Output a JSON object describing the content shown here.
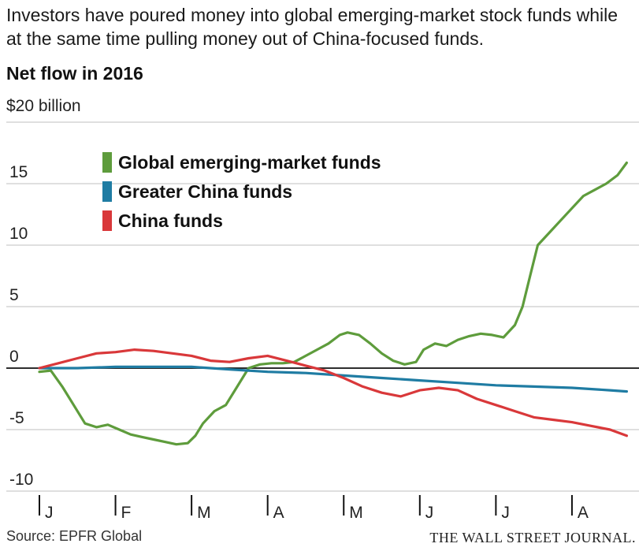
{
  "header": {
    "subtitle": "Investors have poured money into global emerging-market stock funds while at the same time pulling money out of China-focused funds.",
    "title": "Net flow in 2016",
    "unit_label": "$20 billion"
  },
  "footer": {
    "source": "Source: EPFR Global",
    "publisher": "THE WALL STREET JOURNAL."
  },
  "chart_data": {
    "type": "line",
    "title": "Net flow in 2016",
    "ylabel": "$20 billion",
    "ylim": [
      -10,
      20
    ],
    "yticks": [
      {
        "value": 20,
        "label": ""
      },
      {
        "value": 15,
        "label": "15"
      },
      {
        "value": 10,
        "label": "10"
      },
      {
        "value": 5,
        "label": "5"
      },
      {
        "value": 0,
        "label": "0"
      },
      {
        "value": -5,
        "label": "-5"
      },
      {
        "value": -10,
        "label": "-10"
      }
    ],
    "xlim": [
      0,
      7.85
    ],
    "xticks": [
      {
        "value": 0,
        "label": "J"
      },
      {
        "value": 1,
        "label": "F"
      },
      {
        "value": 2,
        "label": "M"
      },
      {
        "value": 3,
        "label": "A"
      },
      {
        "value": 4,
        "label": "M"
      },
      {
        "value": 5,
        "label": "J"
      },
      {
        "value": 6,
        "label": "J"
      },
      {
        "value": 7,
        "label": "A"
      }
    ],
    "grid": true,
    "legend_position": "top-left",
    "series": [
      {
        "name": "Global emerging-market funds",
        "color": "#5e9c3c",
        "x": [
          0,
          0.15,
          0.3,
          0.45,
          0.6,
          0.75,
          0.9,
          1.05,
          1.2,
          1.35,
          1.5,
          1.65,
          1.8,
          1.95,
          2.05,
          2.15,
          2.3,
          2.45,
          2.6,
          2.75,
          2.9,
          3.05,
          3.2,
          3.35,
          3.5,
          3.65,
          3.8,
          3.95,
          4.05,
          4.2,
          4.35,
          4.5,
          4.65,
          4.8,
          4.95,
          5.05,
          5.2,
          5.35,
          5.5,
          5.65,
          5.8,
          5.95,
          6.1,
          6.25,
          6.35,
          6.45,
          6.55,
          6.7,
          6.85,
          7.0,
          7.15,
          7.3,
          7.45,
          7.6,
          7.72
        ],
        "values": [
          -0.3,
          -0.2,
          -1.5,
          -3.0,
          -4.5,
          -4.8,
          -4.6,
          -5.0,
          -5.4,
          -5.6,
          -5.8,
          -6.0,
          -6.2,
          -6.1,
          -5.5,
          -4.5,
          -3.5,
          -3.0,
          -1.5,
          0.0,
          0.3,
          0.4,
          0.4,
          0.5,
          1.0,
          1.5,
          2.0,
          2.7,
          2.9,
          2.7,
          2.0,
          1.2,
          0.6,
          0.3,
          0.5,
          1.5,
          2.0,
          1.8,
          2.3,
          2.6,
          2.8,
          2.7,
          2.5,
          3.5,
          5.0,
          7.5,
          10.0,
          11.0,
          12.0,
          13.0,
          14.0,
          14.5,
          15.0,
          15.7,
          16.7
        ]
      },
      {
        "name": "Greater China funds",
        "color": "#1f7ca3",
        "x": [
          0,
          0.5,
          1.0,
          1.5,
          2.0,
          2.5,
          3.0,
          3.5,
          4.0,
          4.5,
          5.0,
          5.5,
          6.0,
          6.5,
          7.0,
          7.5,
          7.72
        ],
        "values": [
          0.0,
          0.0,
          0.1,
          0.1,
          0.1,
          -0.1,
          -0.3,
          -0.4,
          -0.6,
          -0.8,
          -1.0,
          -1.2,
          -1.4,
          -1.5,
          -1.6,
          -1.8,
          -1.9
        ]
      },
      {
        "name": "China funds",
        "color": "#d9383a",
        "x": [
          0,
          0.25,
          0.5,
          0.75,
          1.0,
          1.25,
          1.5,
          1.75,
          2.0,
          2.25,
          2.5,
          2.75,
          3.0,
          3.25,
          3.5,
          3.75,
          4.0,
          4.25,
          4.5,
          4.75,
          5.0,
          5.25,
          5.5,
          5.75,
          6.0,
          6.25,
          6.5,
          6.75,
          7.0,
          7.25,
          7.5,
          7.72
        ],
        "values": [
          0.0,
          0.4,
          0.8,
          1.2,
          1.3,
          1.5,
          1.4,
          1.2,
          1.0,
          0.6,
          0.5,
          0.8,
          1.0,
          0.6,
          0.2,
          -0.2,
          -0.8,
          -1.5,
          -2.0,
          -2.3,
          -1.8,
          -1.6,
          -1.8,
          -2.5,
          -3.0,
          -3.5,
          -4.0,
          -4.2,
          -4.4,
          -4.7,
          -5.0,
          -5.5
        ]
      }
    ]
  }
}
